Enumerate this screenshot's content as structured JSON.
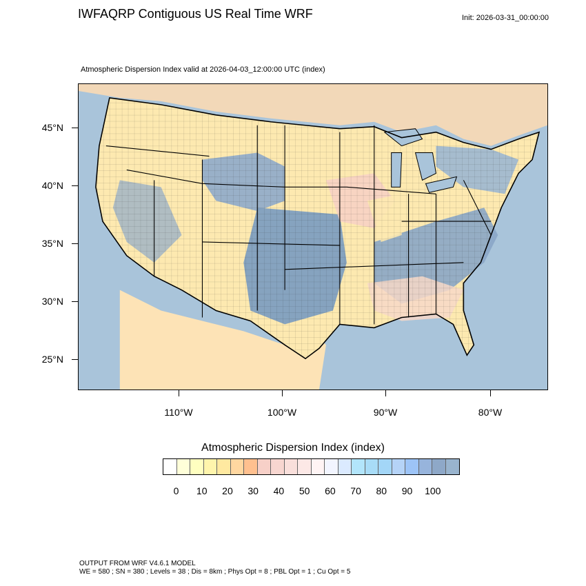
{
  "header": {
    "title": "IWFAQRP Contiguous US Real Time WRF",
    "init": "Init: 2026-03-31_00:00:00",
    "subtitle": "Atmospheric Dispersion Index valid at 2026-04-03_12:00:00 UTC   (index)"
  },
  "map": {
    "lat_labels": [
      "45°N",
      "40°N",
      "35°N",
      "30°N",
      "25°N"
    ],
    "lon_labels": [
      "110°W",
      "100°W",
      "90°W",
      "80°W"
    ],
    "extent": {
      "lon_min": -119.9,
      "lon_max": -74.5,
      "lat_min": 22.1,
      "lat_max": 48.3
    },
    "colors": {
      "ocean": "#a9c4da",
      "low": "#fde9b0",
      "mid": "#f7d2c4",
      "high": "#7f9fc0",
      "boundary": "#000000"
    }
  },
  "colorbar": {
    "title": "Atmospheric Dispersion Index  (index)",
    "labels": [
      "0",
      "10",
      "20",
      "30",
      "40",
      "50",
      "60",
      "70",
      "80",
      "90",
      "100"
    ],
    "colors": [
      "#ffffff",
      "#ffffd9",
      "#ffffc0",
      "#fff5ac",
      "#ffe9a0",
      "#ffd7a0",
      "#ffc08f",
      "#f7d0c8",
      "#f7d6d0",
      "#f9dfdb",
      "#fce8e6",
      "#fff4f4",
      "#f2f5ff",
      "#dbeaff",
      "#b2e5fb",
      "#a8dcf7",
      "#a3d6f7",
      "#b5d3f7",
      "#9dc4f7",
      "#97b4dc",
      "#8ea8c8",
      "#99b4ce"
    ],
    "min": 0,
    "max": 110,
    "step": 5
  },
  "footer": {
    "line1": "OUTPUT FROM WRF V4.6.1 MODEL",
    "line2": "WE = 580 ; SN = 380 ; Levels = 38 ; Dis = 8km ; Phys Opt = 8 ; PBL Opt = 1 ; Cu Opt = 5"
  }
}
